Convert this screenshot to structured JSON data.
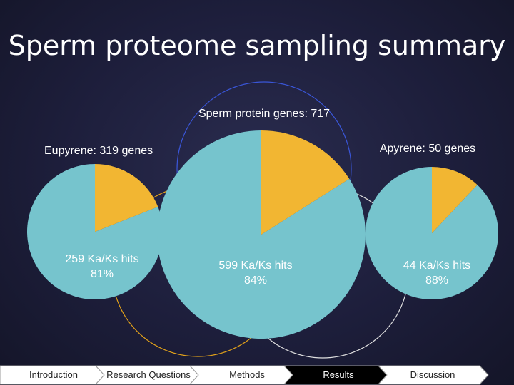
{
  "title": "Sperm proteome sampling summary",
  "colors": {
    "hits": "#76c4cd",
    "other": "#f2b632",
    "circle_total": "#3a56d8",
    "circle_eupyrene": "#e3a21a",
    "circle_apyrene": "#e0e0e0",
    "nav_active": "#000000",
    "nav_inactive": "#ffffff"
  },
  "chart_data": [
    {
      "type": "pie",
      "title": "Eupyrene: 319 genes",
      "slices": [
        {
          "label": "259 Ka/Ks hits",
          "percent_label": "81%",
          "value": 81
        },
        {
          "label": "",
          "value": 19
        }
      ]
    },
    {
      "type": "pie",
      "title": "Sperm protein genes: 717",
      "slices": [
        {
          "label": "599 Ka/Ks hits",
          "percent_label": "84%",
          "value": 84
        },
        {
          "label": "",
          "value": 16
        }
      ]
    },
    {
      "type": "pie",
      "title": "Apyrene: 50 genes",
      "slices": [
        {
          "label": "44 Ka/Ks hits",
          "percent_label": "88%",
          "value": 88
        },
        {
          "label": "",
          "value": 12
        }
      ]
    }
  ],
  "nav": {
    "steps": [
      "Introduction",
      "Research Questions",
      "Methods",
      "Results",
      "Discussion"
    ],
    "active": "Results"
  }
}
